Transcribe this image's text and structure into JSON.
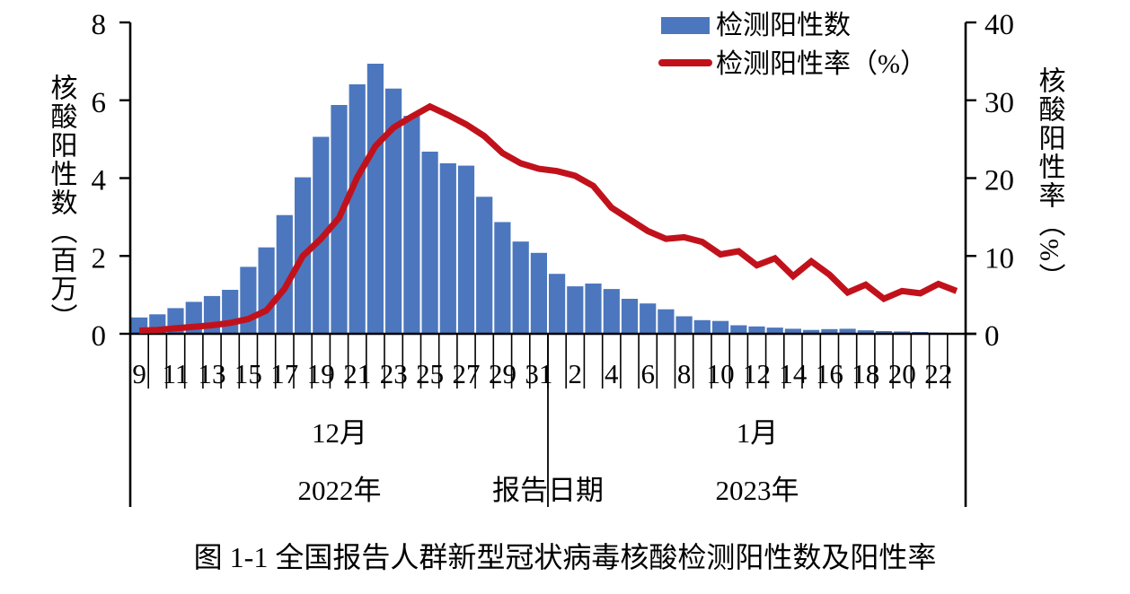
{
  "figure": {
    "caption": "图 1-1 全国报告人群新型冠状病毒核酸检测阳性数及阳性率"
  },
  "legend": {
    "bar_label": "检测阳性数",
    "line_label": "检测阳性率（%）"
  },
  "colors": {
    "bar_blue": "#4C77BE",
    "line_red": "#C1121C",
    "axis_black": "#000000"
  },
  "axes": {
    "left": {
      "title": "核酸阳性数（百万）",
      "ticks": [
        0,
        2,
        4,
        6,
        8
      ]
    },
    "right": {
      "title": "核酸阳性率（%）",
      "ticks": [
        0,
        10,
        20,
        30,
        40
      ]
    },
    "x": {
      "axis_title": "报告日期",
      "months": [
        {
          "label": "12月",
          "days": 23
        },
        {
          "label": "1月",
          "days": 23
        }
      ],
      "years": [
        "2022年",
        "2023年"
      ],
      "dec_tick_labels": [
        "9",
        "11",
        "13",
        "15",
        "17",
        "19",
        "21",
        "23",
        "25",
        "27",
        "29",
        "31"
      ],
      "jan_tick_labels": [
        "2",
        "4",
        "6",
        "8",
        "10",
        "12",
        "14",
        "16",
        "18",
        "20",
        "22"
      ]
    }
  },
  "chart_data": {
    "type": "bar+line",
    "title": "",
    "xlabel": "报告日期",
    "ylabel_left": "核酸阳性数（百万）",
    "ylabel_right": "核酸阳性率（%）",
    "ylim_left": [
      0,
      8
    ],
    "ylim_right": [
      0,
      40
    ],
    "grid": false,
    "legend_position": "top-right",
    "x": [
      "2022-12-09",
      "2022-12-10",
      "2022-12-11",
      "2022-12-12",
      "2022-12-13",
      "2022-12-14",
      "2022-12-15",
      "2022-12-16",
      "2022-12-17",
      "2022-12-18",
      "2022-12-19",
      "2022-12-20",
      "2022-12-21",
      "2022-12-22",
      "2022-12-23",
      "2022-12-24",
      "2022-12-25",
      "2022-12-26",
      "2022-12-27",
      "2022-12-28",
      "2022-12-29",
      "2022-12-30",
      "2022-12-31",
      "2023-01-01",
      "2023-01-02",
      "2023-01-03",
      "2023-01-04",
      "2023-01-05",
      "2023-01-06",
      "2023-01-07",
      "2023-01-08",
      "2023-01-09",
      "2023-01-10",
      "2023-01-11",
      "2023-01-12",
      "2023-01-13",
      "2023-01-14",
      "2023-01-15",
      "2023-01-16",
      "2023-01-17",
      "2023-01-18",
      "2023-01-19",
      "2023-01-20",
      "2023-01-21",
      "2023-01-22",
      "2023-01-23"
    ],
    "series": [
      {
        "name": "检测阳性数",
        "type": "bar",
        "axis": "left",
        "unit": "百万",
        "values": [
          0.42,
          0.5,
          0.66,
          0.82,
          0.97,
          1.13,
          1.72,
          2.22,
          3.05,
          4.02,
          5.06,
          5.88,
          6.41,
          6.94,
          6.3,
          5.6,
          4.68,
          4.38,
          4.32,
          3.52,
          2.87,
          2.37,
          2.08,
          1.54,
          1.22,
          1.29,
          1.15,
          0.9,
          0.78,
          0.63,
          0.45,
          0.35,
          0.33,
          0.22,
          0.19,
          0.16,
          0.13,
          0.1,
          0.12,
          0.13,
          0.09,
          0.07,
          0.06,
          0.045,
          0.03,
          0.015
        ]
      },
      {
        "name": "检测阳性率（%）",
        "type": "line",
        "axis": "right",
        "unit": "%",
        "values": [
          0.4,
          0.5,
          0.7,
          0.9,
          1.1,
          1.4,
          1.9,
          3.0,
          5.8,
          10.0,
          12.2,
          14.9,
          20.1,
          24.1,
          26.5,
          27.9,
          29.2,
          28.1,
          26.9,
          25.4,
          23.2,
          21.9,
          21.2,
          20.9,
          20.3,
          19.0,
          16.2,
          14.7,
          13.2,
          12.2,
          12.4,
          11.8,
          10.2,
          10.6,
          8.8,
          9.7,
          7.4,
          9.3,
          7.6,
          5.3,
          6.3,
          4.5,
          5.5,
          5.2,
          6.4,
          5.5
        ]
      }
    ]
  }
}
